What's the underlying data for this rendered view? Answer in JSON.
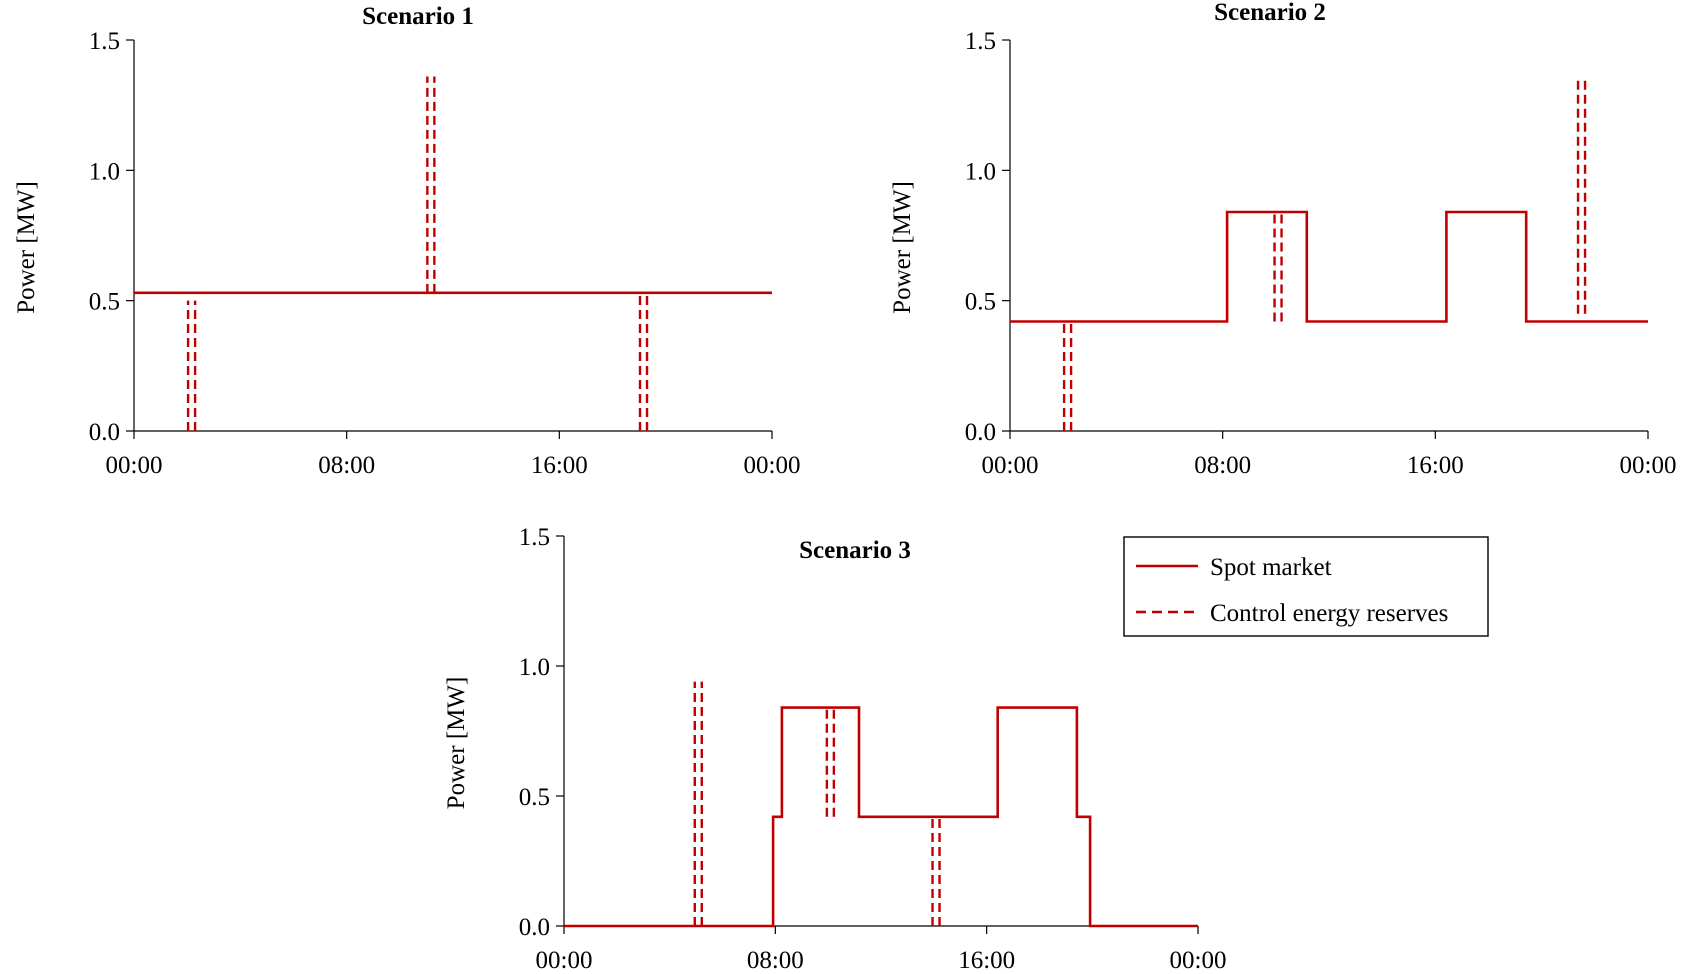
{
  "colors": {
    "series": "#c00000",
    "axis": "#000000"
  },
  "legend": {
    "items": [
      {
        "label": "Spot market",
        "style": "solid"
      },
      {
        "label": "Control energy reserves",
        "style": "dashed"
      }
    ]
  },
  "chart_data": [
    {
      "type": "line",
      "title": "Scenario 1",
      "xlabel": "",
      "ylabel": "Power [MW]",
      "xlim": [
        "00:00",
        "00:00 (+1 day)"
      ],
      "ylim": [
        0,
        1.5
      ],
      "x_ticks": [
        "00:00",
        "08:00",
        "16:00",
        "00:00"
      ],
      "y_ticks": [
        "0.0",
        "0.5",
        "1.0",
        "1.5"
      ],
      "grid": false,
      "spot_market": [
        {
          "time": "00:00",
          "power": 0.53
        },
        {
          "time": "24:00",
          "power": 0.53
        }
      ],
      "control_energy_reserves": [
        {
          "time": "02:10",
          "power_from": 0.0,
          "power_to": 0.5
        },
        {
          "time": "11:10",
          "power_from": 0.53,
          "power_to": 1.36
        },
        {
          "time": "19:10",
          "power_from": 0.0,
          "power_to": 0.53
        }
      ]
    },
    {
      "type": "line",
      "title": "Scenario 2",
      "xlabel": "",
      "ylabel": "Power [MW]",
      "xlim": [
        "00:00",
        "00:00 (+1 day)"
      ],
      "ylim": [
        0,
        1.5
      ],
      "x_ticks": [
        "00:00",
        "08:00",
        "16:00",
        "00:00"
      ],
      "y_ticks": [
        "0.0",
        "0.5",
        "1.0",
        "1.5"
      ],
      "grid": false,
      "spot_market": [
        {
          "time": "00:00",
          "power": 0.42
        },
        {
          "time": "08:10",
          "power": 0.42
        },
        {
          "time": "08:10",
          "power": 0.84
        },
        {
          "time": "11:10",
          "power": 0.84
        },
        {
          "time": "11:10",
          "power": 0.42
        },
        {
          "time": "16:25",
          "power": 0.42
        },
        {
          "time": "16:25",
          "power": 0.84
        },
        {
          "time": "19:25",
          "power": 0.84
        },
        {
          "time": "19:25",
          "power": 0.42
        },
        {
          "time": "24:00",
          "power": 0.42
        }
      ],
      "control_energy_reserves": [
        {
          "time": "02:10",
          "power_from": 0.0,
          "power_to": 0.42
        },
        {
          "time": "10:05",
          "power_from": 0.42,
          "power_to": 0.84
        },
        {
          "time": "21:30",
          "power_from": 0.45,
          "power_to": 1.36
        }
      ]
    },
    {
      "type": "line",
      "title": "Scenario 3",
      "xlabel": "",
      "ylabel": "Power [MW]",
      "xlim": [
        "00:00",
        "00:00 (+1 day)"
      ],
      "ylim": [
        0,
        1.5
      ],
      "x_ticks": [
        "00:00",
        "08:00",
        "16:00",
        "00:00"
      ],
      "y_ticks": [
        "0.0",
        "0.5",
        "1.0",
        "1.5"
      ],
      "grid": false,
      "spot_market": [
        {
          "time": "00:00",
          "power": 0.0
        },
        {
          "time": "07:55",
          "power": 0.0
        },
        {
          "time": "07:55",
          "power": 0.42
        },
        {
          "time": "08:15",
          "power": 0.42
        },
        {
          "time": "08:15",
          "power": 0.84
        },
        {
          "time": "11:10",
          "power": 0.84
        },
        {
          "time": "11:10",
          "power": 0.42
        },
        {
          "time": "16:25",
          "power": 0.42
        },
        {
          "time": "16:25",
          "power": 0.84
        },
        {
          "time": "19:25",
          "power": 0.84
        },
        {
          "time": "19:25",
          "power": 0.42
        },
        {
          "time": "19:55",
          "power": 0.42
        },
        {
          "time": "19:55",
          "power": 0.0
        },
        {
          "time": "24:00",
          "power": 0.0
        }
      ],
      "control_energy_reserves": [
        {
          "time": "05:05",
          "power_from": 0.0,
          "power_to": 0.94
        },
        {
          "time": "10:05",
          "power_from": 0.42,
          "power_to": 0.84
        },
        {
          "time": "14:05",
          "power_from": 0.0,
          "power_to": 0.42
        }
      ]
    }
  ]
}
